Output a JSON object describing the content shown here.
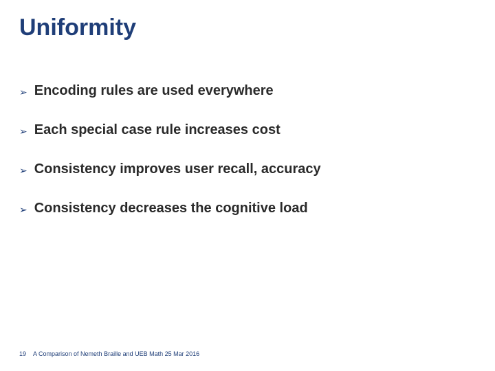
{
  "title": {
    "text": "Uniformity",
    "color": "#1f3e78",
    "fontsize": 34
  },
  "bullets": {
    "items": [
      "Encoding rules are used everywhere",
      "Each special case rule increases cost",
      "Consistency improves user recall, accuracy",
      "Consistency decreases the cognitive load"
    ],
    "text_color": "#2a2a2a",
    "fontsize": 20,
    "bullet_marker": "➢",
    "bullet_color": "#1f3e78",
    "bullet_fontsize": 14
  },
  "footer": {
    "page_number": "19",
    "text": "A Comparison of Nemeth Braille and UEB Math  25 Mar 2016",
    "color": "#1f3e78",
    "fontsize": 9
  },
  "background_color": "#ffffff"
}
